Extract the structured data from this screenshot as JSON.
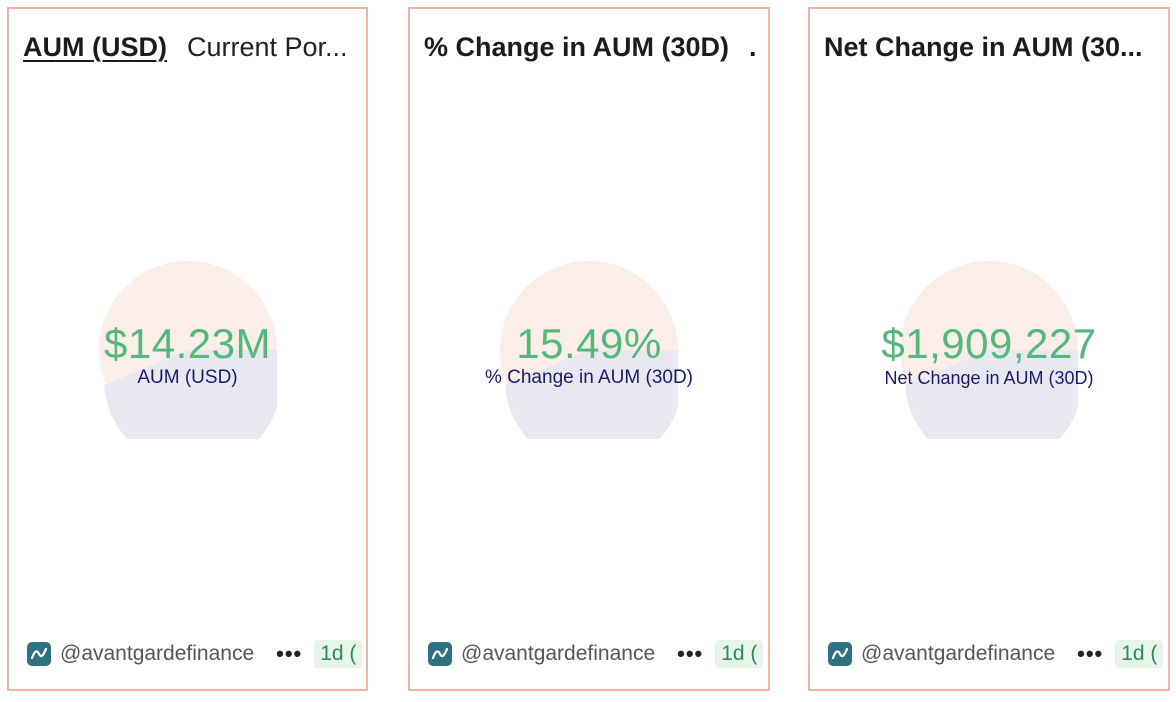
{
  "cards": [
    {
      "tabs": [
        {
          "label": "AUM (USD)",
          "active": true
        },
        {
          "label": "Current Por...",
          "active": false
        }
      ],
      "counter": {
        "value": "$14.23M",
        "label": "AUM (USD)"
      },
      "footer": {
        "author": "@avantgardefinance",
        "more": "•••",
        "refresh": "1d ("
      }
    },
    {
      "title": "% Change in AUM (30D)",
      "title_overflow": ".",
      "counter": {
        "value": "15.49%",
        "label": "% Change in AUM (30D)"
      },
      "footer": {
        "author": "@avantgardefinance",
        "more": "•••",
        "refresh": "1d ("
      }
    },
    {
      "title": "Net Change in AUM (30...",
      "counter": {
        "value": "$1,909,227",
        "label": "Net Change in AUM (30D)"
      },
      "footer": {
        "author": "@avantgardefinance",
        "more": "•••",
        "refresh": "1d ("
      }
    }
  ],
  "colors": {
    "card_border": "#f0b2a4",
    "counter_value": "#53b97a",
    "counter_label": "#1a1a6e",
    "donut_top": "#fbeee9",
    "donut_bottom": "#e9e7f0",
    "avatar_bg": "#2e7184"
  },
  "icons": {
    "author_avatar": "chart-wave-icon"
  }
}
